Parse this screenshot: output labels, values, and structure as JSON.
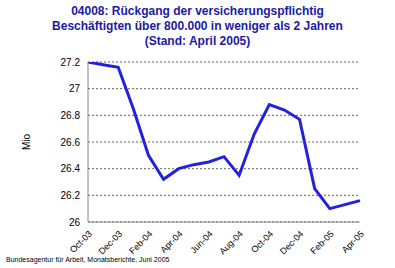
{
  "chart_data": {
    "type": "line",
    "title": "04008: Rückgang der versicherungspflichtig Beschäftigten über 800.000 in weniger als 2 Jahren (Stand: April 2005)",
    "y_label": "Mio",
    "source": "Bundesagentur für Arbeit, Monatsberichte, Juni 2005",
    "categories": [
      "Oct-03",
      null,
      "Dec-03",
      null,
      "Feb-04",
      null,
      "Apr-04",
      null,
      "Jun-04",
      null,
      "Aug-04",
      null,
      "Oct-04",
      null,
      "Dec-04",
      null,
      "Feb-05",
      null,
      "Apr-05"
    ],
    "values": [
      27.2,
      27.18,
      27.16,
      26.85,
      26.5,
      26.32,
      26.4,
      26.43,
      26.45,
      26.49,
      26.35,
      26.66,
      26.88,
      26.84,
      26.77,
      26.25,
      26.1,
      26.13,
      26.16
    ],
    "color": "#2222dd",
    "ylim": [
      26,
      27.2
    ],
    "yticks": [
      26,
      26.2,
      26.4,
      26.6,
      26.8,
      27,
      27.2
    ],
    "grid": true
  }
}
